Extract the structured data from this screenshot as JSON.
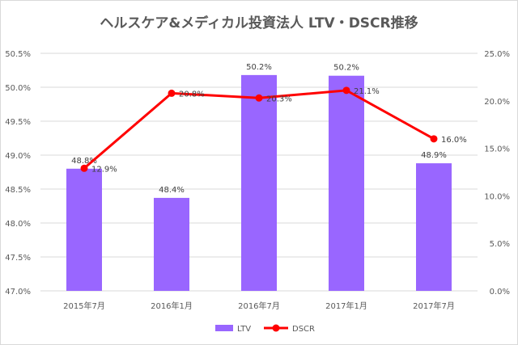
{
  "chart_data": {
    "type": "bar+line",
    "title": "ヘルスケア&メディカル投資法人 LTV・DSCR推移",
    "categories": [
      "2015年7月",
      "2016年1月",
      "2016年7月",
      "2017年1月",
      "2017年7月"
    ],
    "series": [
      {
        "name": "LTV",
        "type": "bar",
        "axis": "left",
        "values": [
          48.8,
          48.37,
          50.18,
          50.17,
          48.88
        ],
        "labels": [
          "48.8%",
          "48.4%",
          "50.2%",
          "50.2%",
          "48.9%"
        ],
        "color": "#9966ff"
      },
      {
        "name": "DSCR",
        "type": "line",
        "axis": "right",
        "values": [
          12.9,
          20.8,
          20.3,
          21.1,
          16.0
        ],
        "labels": [
          "12.9%",
          "20.8%",
          "20.3%",
          "21.1%",
          "16.0%"
        ],
        "color": "#ff0000"
      }
    ],
    "y_left": {
      "range": [
        47.0,
        50.5
      ],
      "step": 0.5,
      "ticks": [
        "47.0%",
        "47.5%",
        "48.0%",
        "48.5%",
        "49.0%",
        "49.5%",
        "50.0%",
        "50.5%"
      ]
    },
    "y_right": {
      "range": [
        0,
        25
      ],
      "step": 5,
      "ticks": [
        "0.0%",
        "5.0%",
        "10.0%",
        "15.0%",
        "20.0%",
        "25.0%"
      ]
    },
    "grid": true,
    "legend": "bottom"
  }
}
